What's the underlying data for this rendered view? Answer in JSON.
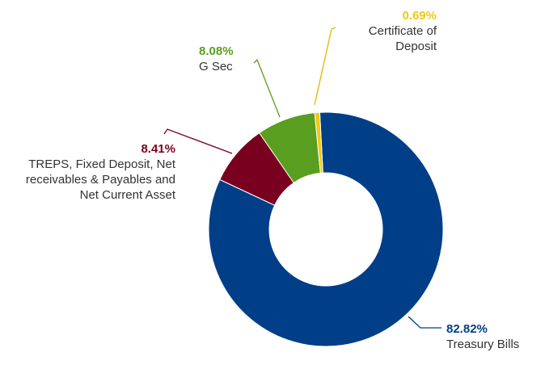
{
  "chart_data": {
    "type": "donut",
    "categories": [
      "Treasury Bills",
      "TREPS, Fixed Deposit, Net receivables & Payables and Net Current Asset",
      "G Sec",
      "Certificate of Deposit"
    ],
    "values": [
      82.82,
      8.41,
      8.08,
      0.69
    ],
    "value_labels": [
      "82.82%",
      "8.41%",
      "8.08%",
      "0.69%"
    ],
    "colors": [
      "#003f87",
      "#7a0020",
      "#5a9e1f",
      "#f2c811"
    ]
  }
}
